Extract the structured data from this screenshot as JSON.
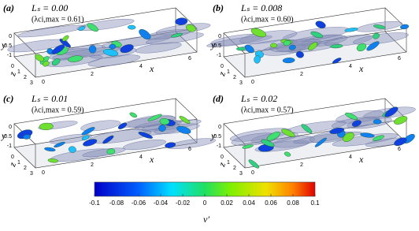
{
  "panels": [
    {
      "label": "(a)",
      "ls": "Lₛ = 0.00",
      "lambda": "(λci,max = 0.61)",
      "x_label": "x",
      "y_label": "y",
      "z_label": "z",
      "x_ticks": [
        "0",
        "2",
        "4",
        "6"
      ],
      "y_ticks": [
        "0",
        "-0.5",
        "-1"
      ],
      "z_ticks": [
        "0",
        "1",
        "2",
        "3"
      ]
    },
    {
      "label": "(b)",
      "ls": "Lₛ = 0.008",
      "lambda": "(λci,max = 0.60)",
      "x_label": "x",
      "y_label": "y",
      "z_label": "z",
      "x_ticks": [
        "0",
        "2",
        "4",
        "6"
      ],
      "y_ticks": [
        "0",
        "-0.5",
        "-1"
      ],
      "z_ticks": [
        "0",
        "1",
        "2",
        "3"
      ]
    },
    {
      "label": "(c)",
      "ls": "Lₛ = 0.01",
      "lambda": "(λci,max = 0.59)",
      "x_label": "x",
      "y_label": "y",
      "z_label": "z",
      "x_ticks": [
        "0",
        "2",
        "4",
        "6"
      ],
      "y_ticks": [
        "0",
        "-0.5",
        "-1"
      ],
      "z_ticks": [
        "0",
        "1",
        "2",
        "3"
      ]
    },
    {
      "label": "(d)",
      "ls": "Lₛ = 0.02",
      "lambda": "(λci,max = 0.57)",
      "x_label": "x",
      "y_label": "y",
      "z_label": "z",
      "x_ticks": [
        "0",
        "2",
        "4",
        "6"
      ],
      "y_ticks": [
        "0",
        "-0.5",
        "-1"
      ],
      "z_ticks": [
        "0",
        "1",
        "2",
        "3"
      ]
    }
  ],
  "colorbar": {
    "label": "v′",
    "lim": [
      -0.1,
      0.1
    ],
    "ticks": [
      -0.1,
      -0.08,
      -0.06,
      -0.04,
      -0.02,
      0,
      0.02,
      0.04,
      0.06,
      0.08,
      0.1
    ]
  }
}
